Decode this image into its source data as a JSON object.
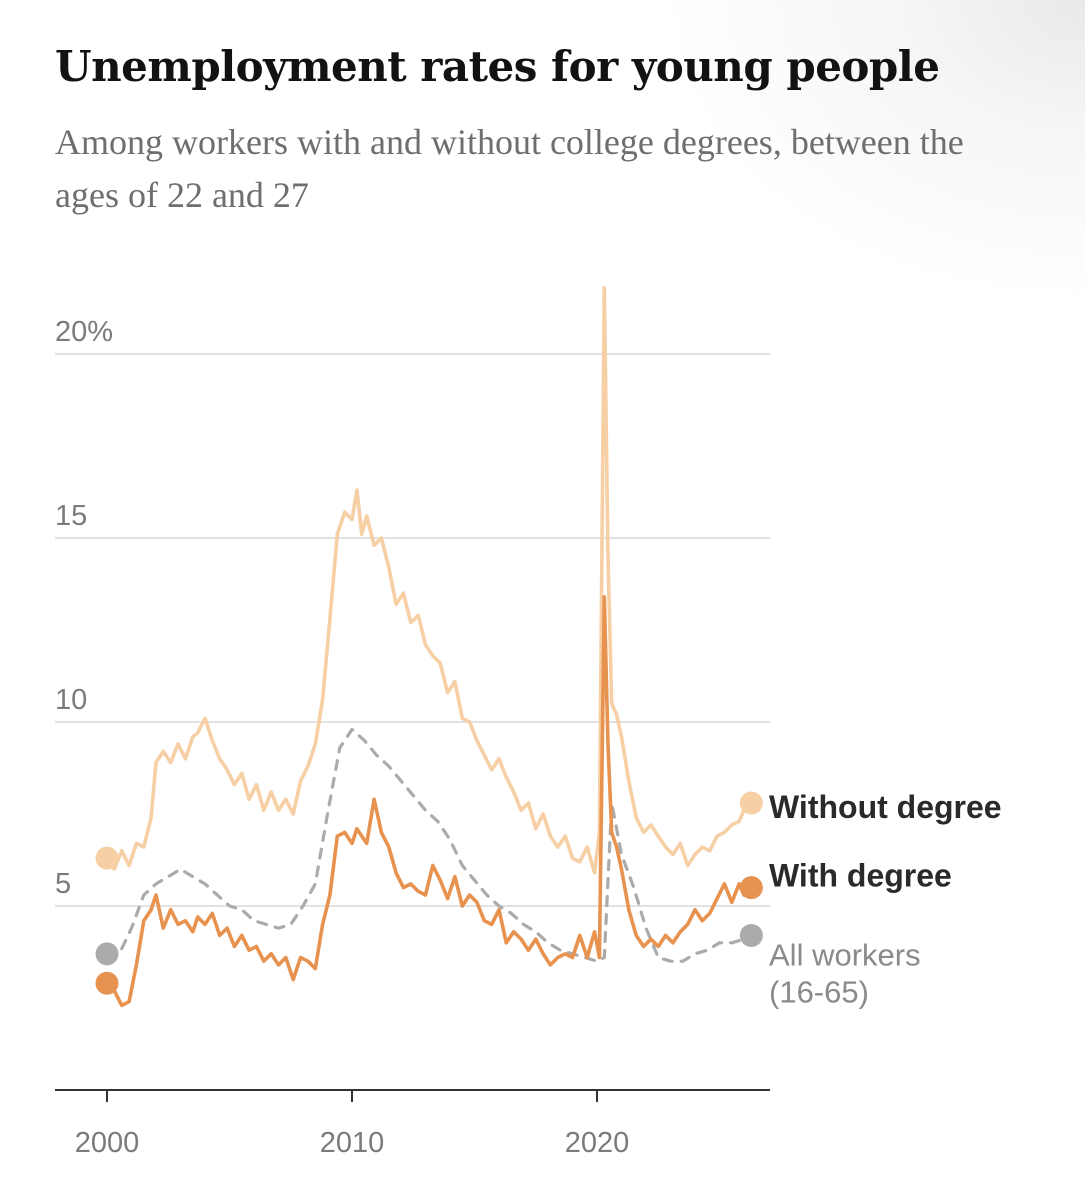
{
  "header": {
    "title": "Unemployment rates for young people",
    "subtitle": "Among workers with and without college degrees, between the ages of 22 and 27"
  },
  "colors": {
    "without_degree": "#f6cfa4",
    "with_degree": "#e8924f",
    "all_workers": "#ababab",
    "gridline": "#e2e2e2",
    "axis": "#333333"
  },
  "chart_data": {
    "type": "line",
    "title": "Unemployment rates for young people",
    "subtitle": "Among workers with and without college degrees, between the ages of 22 and 27",
    "xlabel": "",
    "ylabel": "",
    "xlim": [
      1998,
      2027
    ],
    "ylim": [
      0,
      22.5
    ],
    "x_ticks": [
      {
        "value": 2000,
        "label": "2000"
      },
      {
        "value": 2010,
        "label": "2010"
      },
      {
        "value": 2020,
        "label": "2020"
      }
    ],
    "y_ticks": [
      {
        "value": 5,
        "label": "5"
      },
      {
        "value": 10,
        "label": "10"
      },
      {
        "value": 15,
        "label": "15"
      },
      {
        "value": 20,
        "label": "20%"
      }
    ],
    "grid": true,
    "legend": "direct labels at right end of lines",
    "series": [
      {
        "name": "Without degree",
        "label_lines": [
          "Without degree"
        ],
        "style": "solid",
        "x": [
          2000.0,
          2000.3,
          2000.6,
          2000.9,
          2001.2,
          2001.5,
          2001.8,
          2002.0,
          2002.3,
          2002.6,
          2002.9,
          2003.2,
          2003.5,
          2003.7,
          2004.0,
          2004.3,
          2004.6,
          2004.9,
          2005.2,
          2005.5,
          2005.8,
          2006.1,
          2006.4,
          2006.7,
          2007.0,
          2007.3,
          2007.6,
          2007.9,
          2008.2,
          2008.5,
          2008.8,
          2009.1,
          2009.4,
          2009.7,
          2010.0,
          2010.2,
          2010.4,
          2010.6,
          2010.9,
          2011.2,
          2011.5,
          2011.8,
          2012.1,
          2012.4,
          2012.7,
          2013.0,
          2013.3,
          2013.6,
          2013.9,
          2014.2,
          2014.5,
          2014.8,
          2015.1,
          2015.4,
          2015.7,
          2016.0,
          2016.3,
          2016.6,
          2016.9,
          2017.2,
          2017.5,
          2017.8,
          2018.1,
          2018.4,
          2018.7,
          2019.0,
          2019.3,
          2019.6,
          2019.9,
          2020.1,
          2020.3,
          2020.45,
          2020.6,
          2020.8,
          2021.0,
          2021.3,
          2021.6,
          2021.9,
          2022.2,
          2022.5,
          2022.8,
          2023.1,
          2023.4,
          2023.7,
          2024.0,
          2024.3,
          2024.6,
          2024.9,
          2025.2,
          2025.5,
          2025.8,
          2026.0,
          2026.3
        ],
        "values": [
          6.3,
          6.0,
          6.5,
          6.1,
          6.7,
          6.6,
          7.4,
          8.9,
          9.2,
          8.9,
          9.4,
          9.0,
          9.6,
          9.7,
          10.1,
          9.5,
          9.0,
          8.7,
          8.3,
          8.6,
          7.9,
          8.3,
          7.6,
          8.1,
          7.6,
          7.9,
          7.5,
          8.4,
          8.8,
          9.4,
          10.6,
          12.8,
          15.1,
          15.7,
          15.5,
          16.3,
          15.1,
          15.6,
          14.8,
          15.0,
          14.2,
          13.2,
          13.5,
          12.7,
          12.9,
          12.1,
          11.8,
          11.6,
          10.8,
          11.1,
          10.1,
          10.0,
          9.5,
          9.1,
          8.7,
          9.0,
          8.5,
          8.1,
          7.6,
          7.8,
          7.1,
          7.5,
          6.9,
          6.6,
          6.9,
          6.3,
          6.2,
          6.6,
          5.9,
          7.0,
          21.8,
          14.5,
          10.5,
          10.2,
          9.6,
          8.4,
          7.4,
          7.0,
          7.2,
          6.9,
          6.6,
          6.4,
          6.7,
          6.1,
          6.4,
          6.6,
          6.5,
          6.9,
          7.0,
          7.2,
          7.3,
          7.6,
          7.8
        ]
      },
      {
        "name": "With degree",
        "label_lines": [
          "With degree"
        ],
        "style": "solid",
        "x": [
          2000.0,
          2000.3,
          2000.6,
          2000.9,
          2001.2,
          2001.5,
          2001.8,
          2002.0,
          2002.3,
          2002.6,
          2002.9,
          2003.2,
          2003.5,
          2003.7,
          2004.0,
          2004.3,
          2004.6,
          2004.9,
          2005.2,
          2005.5,
          2005.8,
          2006.1,
          2006.4,
          2006.7,
          2007.0,
          2007.3,
          2007.6,
          2007.9,
          2008.2,
          2008.5,
          2008.8,
          2009.1,
          2009.4,
          2009.7,
          2010.0,
          2010.2,
          2010.4,
          2010.6,
          2010.9,
          2011.2,
          2011.5,
          2011.8,
          2012.1,
          2012.4,
          2012.7,
          2013.0,
          2013.3,
          2013.6,
          2013.9,
          2014.2,
          2014.5,
          2014.8,
          2015.1,
          2015.4,
          2015.7,
          2016.0,
          2016.3,
          2016.6,
          2016.9,
          2017.2,
          2017.5,
          2017.8,
          2018.1,
          2018.4,
          2018.7,
          2019.0,
          2019.3,
          2019.6,
          2019.9,
          2020.1,
          2020.3,
          2020.45,
          2020.6,
          2020.8,
          2021.0,
          2021.3,
          2021.6,
          2021.9,
          2022.2,
          2022.5,
          2022.8,
          2023.1,
          2023.4,
          2023.7,
          2024.0,
          2024.3,
          2024.6,
          2024.9,
          2025.2,
          2025.5,
          2025.8,
          2026.0,
          2026.3
        ],
        "values": [
          2.9,
          2.7,
          2.3,
          2.4,
          3.4,
          4.6,
          4.9,
          5.3,
          4.4,
          4.9,
          4.5,
          4.6,
          4.3,
          4.7,
          4.5,
          4.8,
          4.2,
          4.4,
          3.9,
          4.2,
          3.8,
          3.9,
          3.5,
          3.7,
          3.4,
          3.6,
          3.0,
          3.6,
          3.5,
          3.3,
          4.5,
          5.3,
          6.9,
          7.0,
          6.7,
          7.1,
          6.9,
          6.7,
          7.9,
          7.0,
          6.6,
          5.9,
          5.5,
          5.6,
          5.4,
          5.3,
          6.1,
          5.7,
          5.2,
          5.8,
          5.0,
          5.3,
          5.1,
          4.6,
          4.5,
          4.9,
          4.0,
          4.3,
          4.1,
          3.8,
          4.1,
          3.7,
          3.4,
          3.6,
          3.7,
          3.6,
          4.2,
          3.6,
          4.3,
          3.6,
          13.4,
          9.4,
          7.0,
          6.6,
          6.0,
          4.9,
          4.2,
          3.9,
          4.1,
          3.9,
          4.2,
          4.0,
          4.3,
          4.5,
          4.9,
          4.6,
          4.8,
          5.2,
          5.6,
          5.1,
          5.6,
          5.3,
          5.5
        ]
      },
      {
        "name": "All workers (16-65)",
        "label_lines": [
          "All workers",
          "(16-65)"
        ],
        "style": "dashed",
        "x": [
          2000.0,
          2000.5,
          2001.0,
          2001.5,
          2002.0,
          2002.5,
          2003.0,
          2003.5,
          2004.0,
          2004.5,
          2005.0,
          2005.5,
          2006.0,
          2006.5,
          2007.0,
          2007.5,
          2008.0,
          2008.5,
          2009.0,
          2009.5,
          2010.0,
          2010.5,
          2011.0,
          2011.5,
          2012.0,
          2012.5,
          2013.0,
          2013.5,
          2014.0,
          2014.5,
          2015.0,
          2015.5,
          2016.0,
          2016.5,
          2017.0,
          2017.5,
          2018.0,
          2018.5,
          2019.0,
          2019.5,
          2020.0,
          2020.3,
          2020.6,
          2021.0,
          2021.5,
          2022.0,
          2022.5,
          2023.0,
          2023.5,
          2024.0,
          2024.5,
          2025.0,
          2025.5,
          2026.0,
          2026.3
        ],
        "values": [
          3.7,
          3.7,
          4.4,
          5.3,
          5.6,
          5.8,
          6.0,
          5.8,
          5.6,
          5.3,
          5.0,
          4.9,
          4.6,
          4.5,
          4.4,
          4.5,
          5.0,
          5.6,
          7.5,
          9.3,
          9.8,
          9.5,
          9.1,
          8.8,
          8.4,
          8.0,
          7.6,
          7.3,
          6.8,
          6.1,
          5.7,
          5.3,
          5.0,
          4.8,
          4.5,
          4.3,
          4.0,
          3.8,
          3.7,
          3.6,
          3.5,
          3.6,
          7.8,
          6.4,
          5.5,
          4.4,
          3.6,
          3.5,
          3.5,
          3.7,
          3.8,
          4.0,
          4.0,
          4.1,
          4.2
        ]
      }
    ]
  }
}
